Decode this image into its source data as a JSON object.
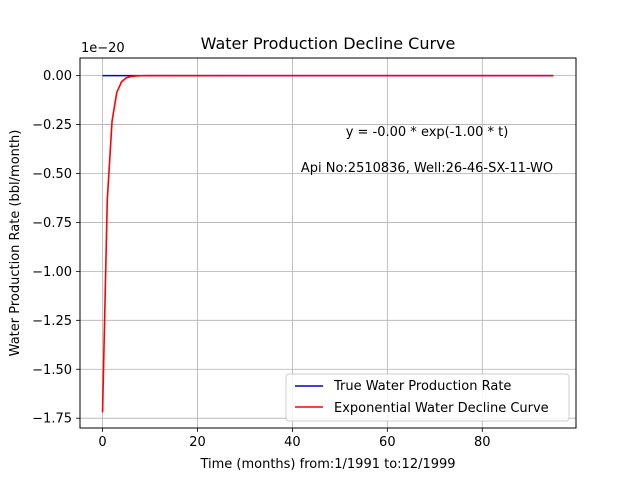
{
  "chart_data": {
    "type": "line",
    "title": "Water Production Decline Curve",
    "xlabel": "Time (months) from:1/1991 to:12/1999",
    "ylabel": "Water Production Rate (bbl/month)",
    "offset_label": "1e−20",
    "annotations": [
      "y = -0.00 * exp(-1.00 * t)",
      "Api No:2510836, Well:26-46-SX-11-WO"
    ],
    "xlim": [
      -4.75,
      99.75
    ],
    "ylim": [
      -1.8,
      0.09
    ],
    "xticks": [
      0,
      20,
      40,
      60,
      80
    ],
    "xtick_labels": [
      "0",
      "20",
      "40",
      "60",
      "80"
    ],
    "yticks": [
      0.0,
      -0.25,
      -0.5,
      -0.75,
      -1.0,
      -1.25,
      -1.5,
      -1.75
    ],
    "ytick_labels": [
      "0.00",
      "−0.25",
      "−0.50",
      "−0.75",
      "−1.00",
      "−1.25",
      "−1.50",
      "−1.75"
    ],
    "grid": true,
    "legend_position": "lower-right",
    "series": [
      {
        "name": "True Water Production Rate",
        "color": "#0000cc",
        "x": [
          0,
          95
        ],
        "y": [
          0.0,
          0.0
        ]
      },
      {
        "name": "Exponential Water Decline Curve",
        "color": "#ff0000",
        "x": [
          0,
          1,
          2,
          3,
          4,
          5,
          6,
          7,
          8,
          10,
          95
        ],
        "y": [
          -1.72,
          -0.633,
          -0.233,
          -0.0857,
          -0.0315,
          -0.0116,
          -0.0043,
          -0.0016,
          -0.0006,
          -0.0001,
          0.0
        ]
      }
    ]
  }
}
